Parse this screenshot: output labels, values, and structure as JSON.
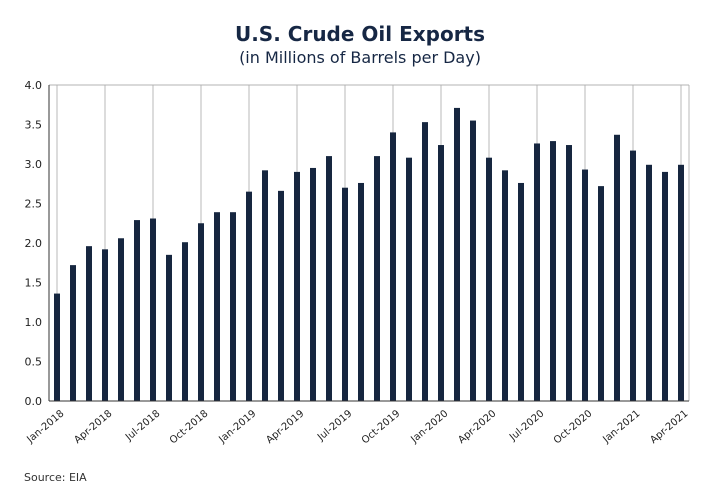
{
  "chart_data": {
    "type": "bar",
    "title": "U.S. Crude Oil Exports",
    "subtitle": "(in Millions of Barrels per Day)",
    "source": "Source: EIA",
    "ylim": [
      0,
      4.0
    ],
    "yticks": [
      "0.0",
      "0.5",
      "1.0",
      "1.5",
      "2.0",
      "2.5",
      "3.0",
      "3.5",
      "4.0"
    ],
    "bar_color": "#16263f",
    "grid": "vertical lines at labeled months",
    "xtick_labels": [
      "Jan-2018",
      "Apr-2018",
      "Jul-2018",
      "Oct-2018",
      "Jan-2019",
      "Apr-2019",
      "Jul-2019",
      "Oct-2019",
      "Jan-2020",
      "Apr-2020",
      "Jul-2020",
      "Oct-2020",
      "Jan-2021",
      "Apr-2021"
    ],
    "categories": [
      "Jan-2018",
      "Feb-2018",
      "Mar-2018",
      "Apr-2018",
      "May-2018",
      "Jun-2018",
      "Jul-2018",
      "Aug-2018",
      "Sep-2018",
      "Oct-2018",
      "Nov-2018",
      "Dec-2018",
      "Jan-2019",
      "Feb-2019",
      "Mar-2019",
      "Apr-2019",
      "May-2019",
      "Jun-2019",
      "Jul-2019",
      "Aug-2019",
      "Sep-2019",
      "Oct-2019",
      "Nov-2019",
      "Dec-2019",
      "Jan-2020",
      "Feb-2020",
      "Mar-2020",
      "Apr-2020",
      "May-2020",
      "Jun-2020",
      "Jul-2020",
      "Aug-2020",
      "Sep-2020",
      "Oct-2020",
      "Nov-2020",
      "Dec-2020",
      "Jan-2021",
      "Feb-2021",
      "Mar-2021",
      "Apr-2021"
    ],
    "values": [
      1.36,
      1.72,
      1.96,
      1.92,
      2.06,
      2.29,
      2.31,
      1.85,
      2.01,
      2.25,
      2.39,
      2.39,
      2.65,
      2.92,
      2.66,
      2.9,
      2.95,
      3.1,
      2.7,
      2.76,
      3.1,
      3.4,
      3.08,
      3.53,
      3.24,
      3.71,
      3.55,
      3.08,
      2.92,
      2.76,
      3.26,
      3.29,
      3.24,
      2.93,
      2.72,
      3.37,
      3.17,
      2.99,
      2.9,
      2.99
    ]
  }
}
